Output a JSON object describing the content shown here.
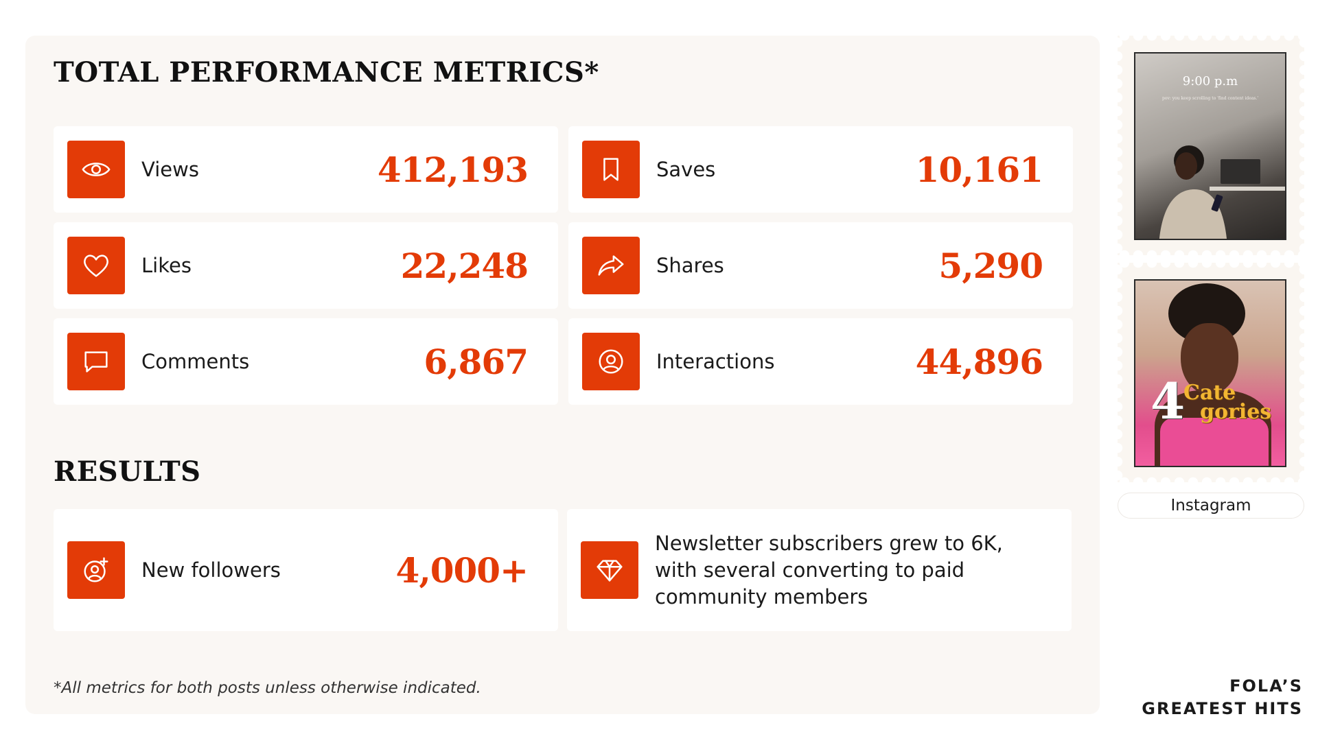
{
  "metrics_section": {
    "title": "TOTAL PERFORMANCE METRICS*",
    "items": [
      {
        "label": "Views",
        "value": "412,193",
        "icon": "eye-icon"
      },
      {
        "label": "Saves",
        "value": "10,161",
        "icon": "bookmark-icon"
      },
      {
        "label": "Likes",
        "value": "22,248",
        "icon": "heart-icon"
      },
      {
        "label": "Shares",
        "value": "5,290",
        "icon": "share-icon"
      },
      {
        "label": "Comments",
        "value": "6,867",
        "icon": "comment-icon"
      },
      {
        "label": "Interactions",
        "value": "44,896",
        "icon": "user-circle-icon"
      }
    ]
  },
  "results_section": {
    "title": "RESULTS",
    "followers": {
      "label": "New followers",
      "value": "4,000+",
      "icon": "add-user-icon"
    },
    "newsletter": {
      "text": "Newsletter subscribers grew to 6K, with several converting to paid community members",
      "icon": "diamond-icon"
    }
  },
  "footnote": "*All metrics for both posts unless otherwise indicated.",
  "stamps": {
    "photo1": {
      "time": "9:00 p.m",
      "caption": "pov: you keep scrolling to 'find content ideas.'"
    },
    "photo2": {
      "number": "4",
      "word_line1": "Cate",
      "word_line2": "gories"
    },
    "platform": "Instagram"
  },
  "brand": {
    "line1": "FOLA’S",
    "line2": "GREATEST HITS"
  },
  "colors": {
    "accent": "#e33b07",
    "panel": "#faf7f4"
  }
}
